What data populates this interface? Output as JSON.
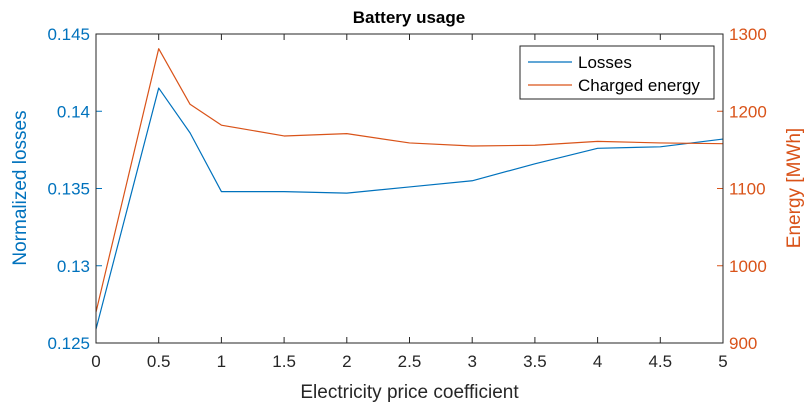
{
  "chart_data": {
    "type": "line",
    "title": "Battery usage",
    "xlabel": "Electricity price coefficient",
    "ylabel_left": "Normalized losses",
    "ylabel_right": "Energy [MWh]",
    "xlim": [
      0,
      5
    ],
    "ylim_left": [
      0.125,
      0.145
    ],
    "ylim_right": [
      900,
      1300
    ],
    "x_ticks": [
      0,
      0.5,
      1,
      1.5,
      2,
      2.5,
      3,
      3.5,
      4,
      4.5,
      5
    ],
    "x_tick_labels": [
      "0",
      "0.5",
      "1",
      "1.5",
      "2",
      "2.5",
      "3",
      "3.5",
      "4",
      "4.5",
      "5"
    ],
    "y_left_ticks": [
      0.125,
      0.13,
      0.135,
      0.14,
      0.145
    ],
    "y_left_tick_labels": [
      "0.125",
      "0.13",
      "0.135",
      "0.14",
      "0.145"
    ],
    "y_right_ticks": [
      900,
      1000,
      1100,
      1200,
      1300
    ],
    "y_right_tick_labels": [
      "900",
      "1000",
      "1100",
      "1200",
      "1300"
    ],
    "grid": false,
    "legend_position": "top-right",
    "colors": {
      "left_axis": "#0072BD",
      "right_axis": "#D95319",
      "box": "#262626"
    },
    "series": [
      {
        "name": "Losses",
        "axis": "left",
        "color": "#0072BD",
        "x": [
          0,
          0.5,
          0.75,
          1,
          1.5,
          2,
          2.5,
          3,
          3.5,
          4,
          4.5,
          5
        ],
        "values": [
          0.1259,
          0.1415,
          0.1386,
          0.1348,
          0.1348,
          0.1347,
          0.1351,
          0.1355,
          0.1366,
          0.1376,
          0.1377,
          0.1382
        ]
      },
      {
        "name": "Charged energy",
        "axis": "right",
        "color": "#D95319",
        "x": [
          0,
          0.5,
          0.75,
          1,
          1.5,
          2,
          2.5,
          3,
          3.5,
          4,
          4.5,
          5
        ],
        "values": [
          940,
          1281,
          1209,
          1182,
          1168,
          1171,
          1159,
          1155,
          1156,
          1161,
          1159,
          1158
        ]
      }
    ]
  }
}
